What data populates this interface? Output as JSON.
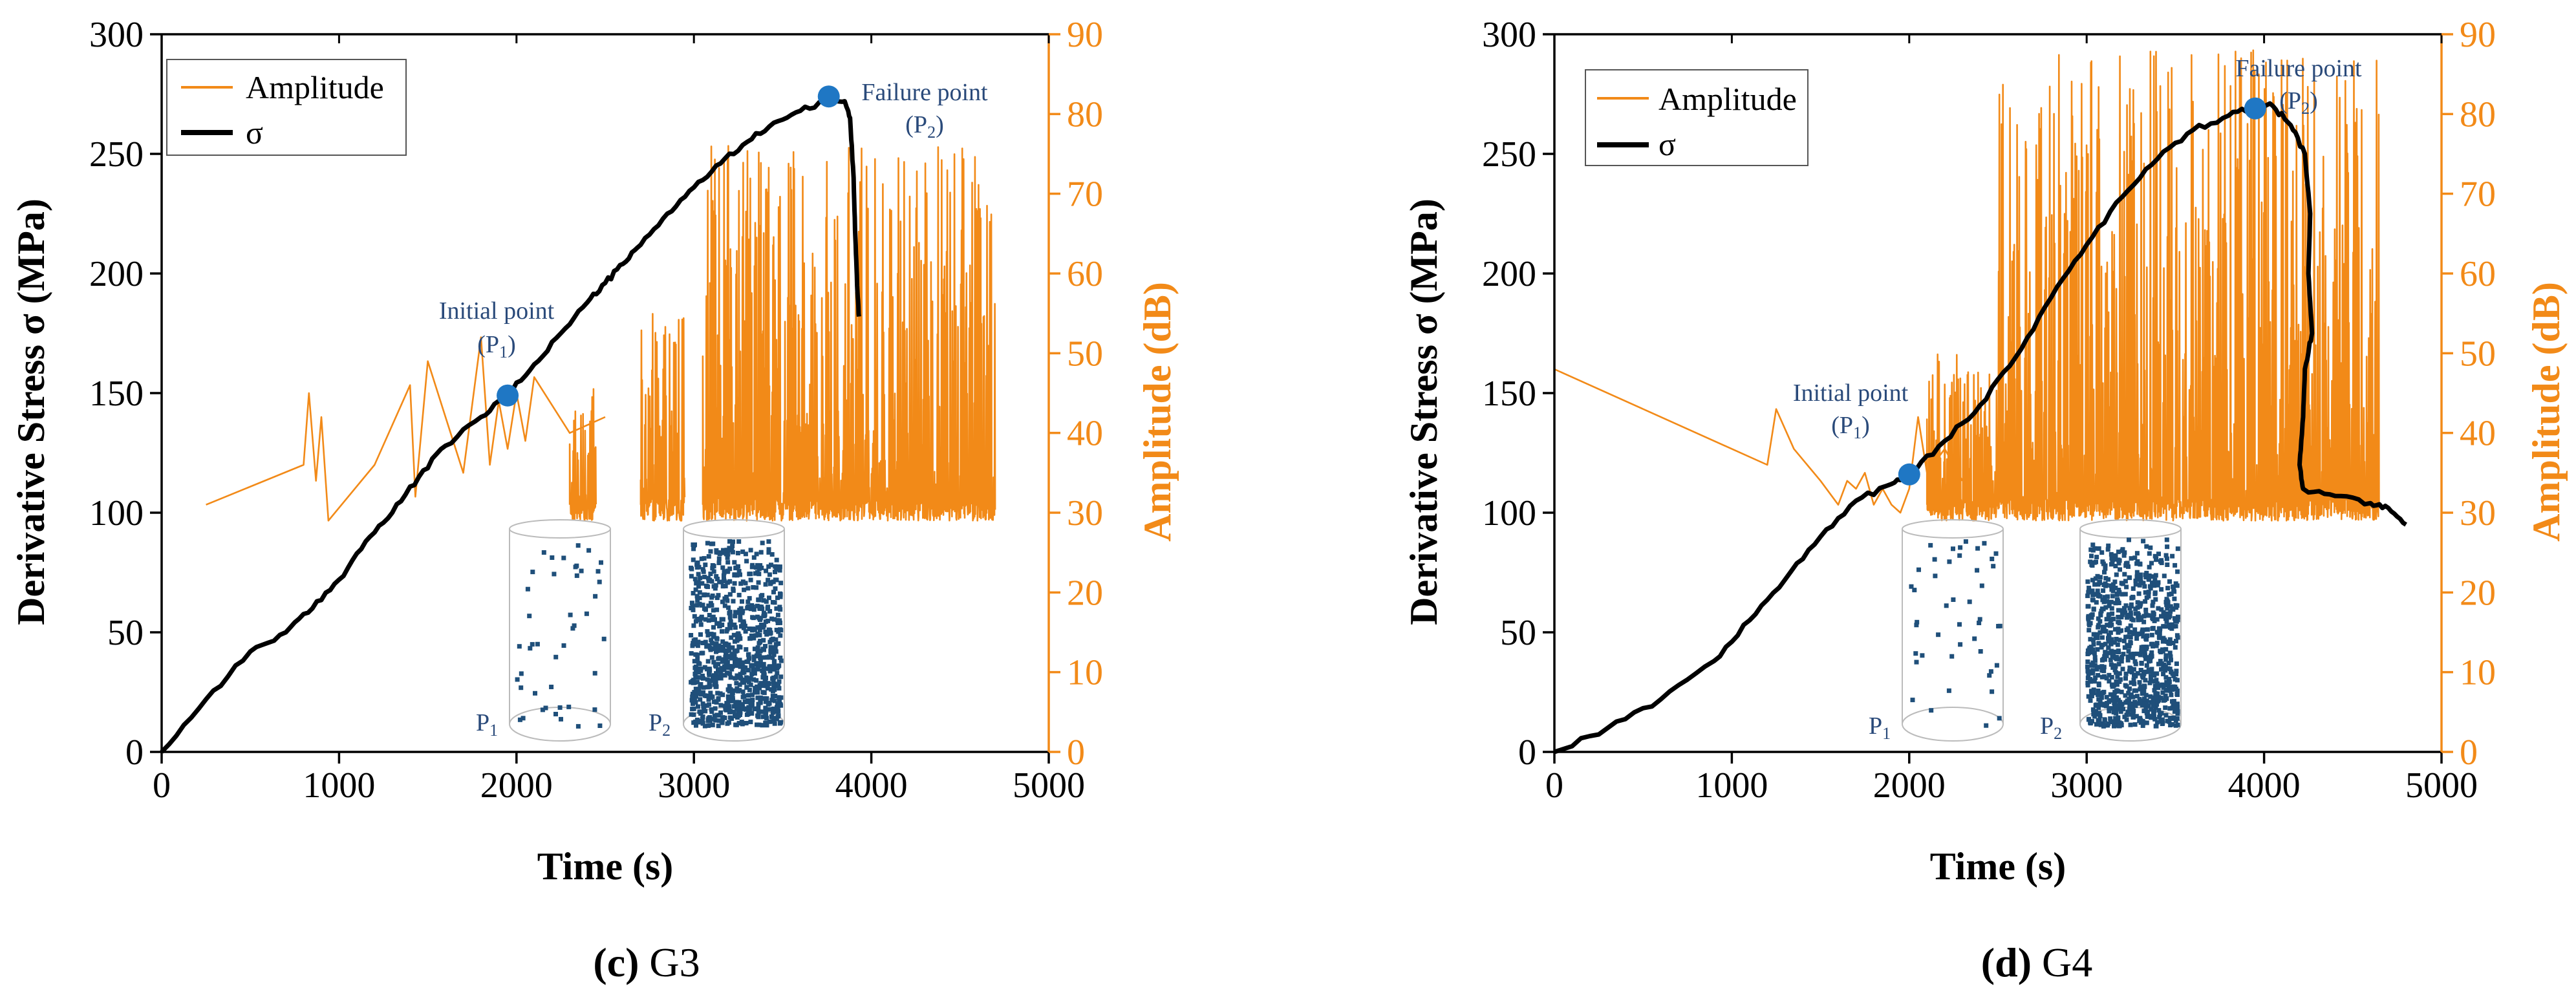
{
  "charts": [
    {
      "caption_letter": "(c)",
      "caption_name": "G3",
      "xlabel": "Time (s)",
      "ylabel_left": "Derivative Stress σ (MPa)",
      "ylabel_right": "Amplitude (dB)",
      "legend": [
        "Amplitude",
        "σ"
      ],
      "annotations": {
        "initial_line1": "Initial point",
        "initial_line2": "(P",
        "initial_sub": "1",
        "failure_line1": "Failure point",
        "failure_line2": "(P",
        "failure_sub": "2",
        "close_paren": ")",
        "p1_label": "P",
        "p1_sub": "1",
        "p2_label": "P",
        "p2_sub": "2"
      }
    },
    {
      "caption_letter": "(d)",
      "caption_name": "G4",
      "xlabel": "Time (s)",
      "ylabel_left": "Derivative Stress σ (MPa)",
      "ylabel_right": "Amplitude (dB)",
      "legend": [
        "Amplitude",
        "σ"
      ],
      "annotations": {
        "initial_line1": "Initial point",
        "initial_line2": "(P",
        "initial_sub": "1",
        "failure_line1": "Failure point",
        "failure_line2": "(P",
        "failure_sub": "2",
        "close_paren": ")",
        "p1_label": "P",
        "p1_sub": "1",
        "p2_label": "P",
        "p2_sub": "2"
      }
    }
  ],
  "chart_data": [
    {
      "type": "line",
      "title": "(c) G3",
      "xlabel": "Time (s)",
      "ylabel": "Derivative Stress σ (MPa)",
      "y2label": "Amplitude (dB)",
      "xlim": [
        0,
        5000
      ],
      "ylim": [
        0,
        300
      ],
      "y2lim": [
        0,
        90
      ],
      "xticks": [
        0,
        1000,
        2000,
        3000,
        4000,
        5000
      ],
      "yticks": [
        0,
        50,
        100,
        150,
        200,
        250,
        300
      ],
      "y2ticks": [
        0,
        10,
        20,
        30,
        40,
        50,
        60,
        70,
        80,
        90
      ],
      "series": [
        {
          "name": "σ",
          "axis": "left",
          "color": "#000000",
          "points": [
            [
              0,
              0
            ],
            [
              250,
              22
            ],
            [
              500,
              42
            ],
            [
              700,
              50
            ],
            [
              850,
              60
            ],
            [
              1000,
              72
            ],
            [
              1150,
              88
            ],
            [
              1300,
              100
            ],
            [
              1450,
              115
            ],
            [
              1600,
              128
            ],
            [
              1800,
              140
            ],
            [
              1950,
              149
            ],
            [
              2100,
              162
            ],
            [
              2250,
              175
            ],
            [
              2400,
              188
            ],
            [
              2500,
              196
            ],
            [
              2600,
              204
            ],
            [
              2700,
              212
            ],
            [
              2850,
              225
            ],
            [
              3000,
              236
            ],
            [
              3150,
              246
            ],
            [
              3300,
              255
            ],
            [
              3450,
              263
            ],
            [
              3600,
              268
            ],
            [
              3760,
              272
            ],
            [
              3850,
              272
            ],
            [
              3880,
              265
            ],
            [
              3900,
              240
            ],
            [
              3910,
              215
            ],
            [
              3920,
              195
            ],
            [
              3930,
              182
            ]
          ]
        },
        {
          "name": "Amplitude",
          "axis": "right",
          "color": "#f28a18",
          "points": [
            [
              250,
              31
            ],
            [
              800,
              36
            ],
            [
              830,
              45
            ],
            [
              870,
              34
            ],
            [
              900,
              42
            ],
            [
              940,
              29
            ],
            [
              1200,
              36
            ],
            [
              1400,
              46
            ],
            [
              1430,
              32
            ],
            [
              1500,
              49
            ],
            [
              1600,
              42
            ],
            [
              1700,
              35
            ],
            [
              1800,
              52
            ],
            [
              1850,
              36
            ],
            [
              1900,
              44
            ],
            [
              1950,
              38
            ],
            [
              2000,
              45
            ],
            [
              2050,
              39
            ],
            [
              2100,
              47
            ],
            [
              2300,
              40
            ],
            [
              2400,
              41
            ],
            [
              2500,
              42
            ]
          ],
          "dense_segments": [
            {
              "x_range": [
                2300,
                2450
              ],
              "amp_range": [
                29,
                46
              ]
            },
            {
              "x_range": [
                2700,
                2950
              ],
              "amp_range": [
                29,
                55
              ]
            },
            {
              "x_range": [
                3050,
                4700
              ],
              "amp_range": [
                29,
                76
              ]
            }
          ],
          "peak_amplitude": 76
        }
      ],
      "markers": [
        {
          "name": "Initial point (P1)",
          "x": 1950,
          "y": 149,
          "color": "#1f77c4"
        },
        {
          "name": "Failure point (P2)",
          "x": 3760,
          "y": 274,
          "color": "#1f77c4"
        }
      ],
      "legend": [
        "Amplitude",
        "σ"
      ],
      "legend_position": "top-left"
    },
    {
      "type": "line",
      "title": "(d) G4",
      "xlabel": "Time (s)",
      "ylabel": "Derivative Stress σ (MPa)",
      "y2label": "Amplitude (dB)",
      "xlim": [
        0,
        5000
      ],
      "ylim": [
        0,
        300
      ],
      "y2lim": [
        0,
        90
      ],
      "xticks": [
        0,
        1000,
        2000,
        3000,
        4000,
        5000
      ],
      "yticks": [
        0,
        50,
        100,
        150,
        200,
        250,
        300
      ],
      "y2ticks": [
        0,
        10,
        20,
        30,
        40,
        50,
        60,
        70,
        80,
        90
      ],
      "series": [
        {
          "name": "σ",
          "axis": "left",
          "color": "#000000",
          "points": [
            [
              0,
              0
            ],
            [
              300,
              10
            ],
            [
              600,
              22
            ],
            [
              900,
              38
            ],
            [
              1100,
              55
            ],
            [
              1300,
              72
            ],
            [
              1500,
              90
            ],
            [
              1700,
              105
            ],
            [
              1900,
              112
            ],
            [
              2000,
              116
            ],
            [
              2200,
              130
            ],
            [
              2400,
              145
            ],
            [
              2600,
              165
            ],
            [
              2800,
              190
            ],
            [
              3000,
              212
            ],
            [
              3200,
              232
            ],
            [
              3400,
              248
            ],
            [
              3600,
              260
            ],
            [
              3800,
              266
            ],
            [
              3950,
              270
            ],
            [
              4050,
              270
            ],
            [
              4150,
              262
            ],
            [
              4230,
              250
            ],
            [
              4260,
              225
            ],
            [
              4250,
              200
            ],
            [
              4270,
              175
            ],
            [
              4230,
              160
            ],
            [
              4220,
              140
            ],
            [
              4200,
              120
            ],
            [
              4220,
              110
            ],
            [
              4400,
              107
            ],
            [
              4600,
              104
            ],
            [
              4700,
              102
            ],
            [
              4800,
              95
            ]
          ]
        },
        {
          "name": "Amplitude",
          "axis": "right",
          "color": "#f28a18",
          "points": [
            [
              0,
              48
            ],
            [
              1200,
              36
            ],
            [
              1250,
              43
            ],
            [
              1350,
              38
            ],
            [
              1500,
              34
            ],
            [
              1600,
              31
            ],
            [
              1650,
              34
            ],
            [
              1700,
              33
            ],
            [
              1750,
              35
            ],
            [
              1800,
              31
            ],
            [
              1850,
              33
            ],
            [
              1900,
              31
            ],
            [
              1950,
              30
            ],
            [
              2000,
              33
            ],
            [
              2050,
              42
            ],
            [
              2100,
              35
            ],
            [
              2200,
              38
            ],
            [
              2300,
              34
            ]
          ],
          "dense_segments": [
            {
              "x_range": [
                2100,
                2500
              ],
              "amp_range": [
                29,
                50
              ]
            },
            {
              "x_range": [
                2500,
                4650
              ],
              "amp_range": [
                29,
                88
              ]
            }
          ],
          "peak_amplitude": 88
        }
      ],
      "markers": [
        {
          "name": "Initial point (P1)",
          "x": 2000,
          "y": 116,
          "color": "#1f77c4"
        },
        {
          "name": "Failure point (P2)",
          "x": 3950,
          "y": 269,
          "color": "#1f77c4"
        }
      ],
      "legend": [
        "Amplitude",
        "σ"
      ],
      "legend_position": "top-left"
    }
  ],
  "colors": {
    "stress": "#000000",
    "amplitude": "#f28a18",
    "marker": "#1f77c4",
    "annotation": "#2a4a7a",
    "scatter": "#1f4f7a"
  }
}
